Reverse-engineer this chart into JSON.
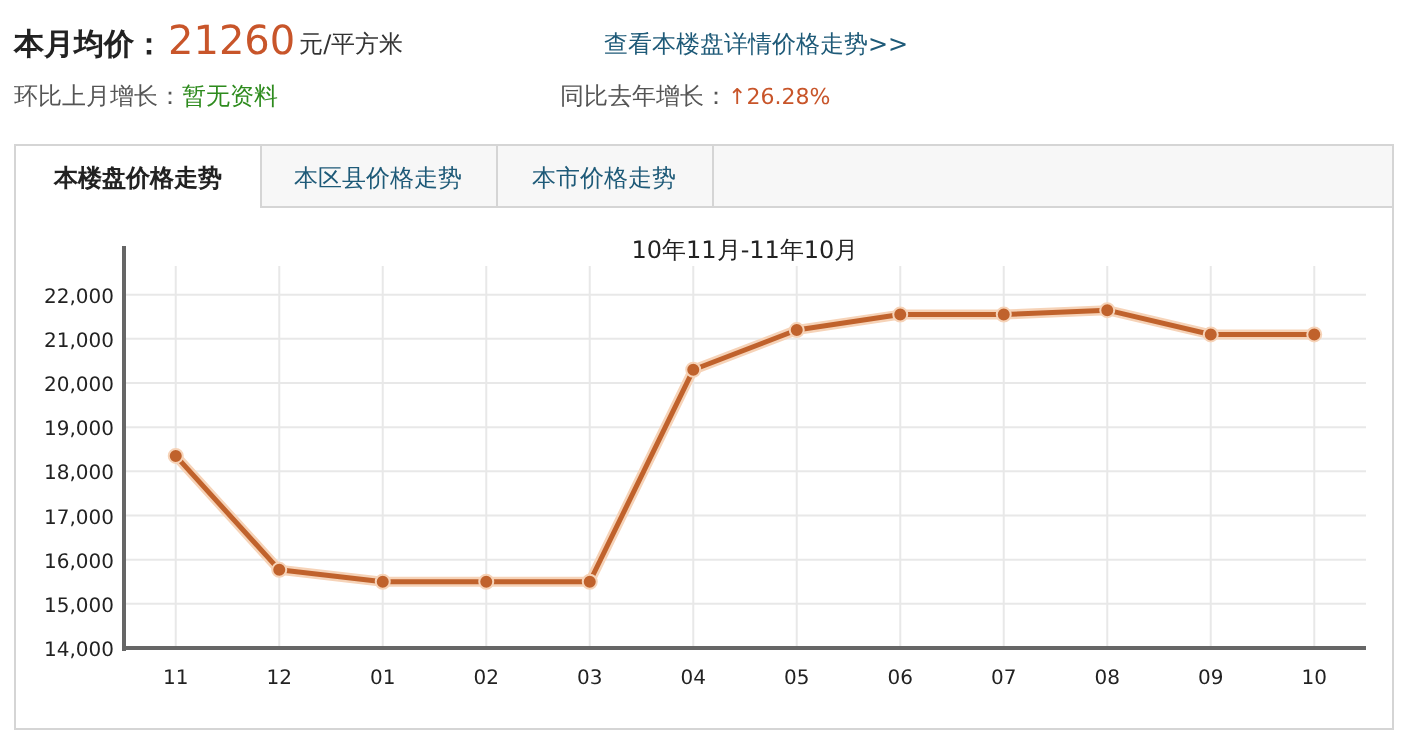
{
  "chart_data": {
    "type": "line",
    "title": "10年11月-11年10月",
    "categories": [
      "11",
      "12",
      "01",
      "02",
      "03",
      "04",
      "05",
      "06",
      "07",
      "08",
      "09",
      "10"
    ],
    "series": [
      {
        "color": "#c0622c",
        "values": [
          18350,
          15770,
          15500,
          15500,
          15500,
          20300,
          21200,
          21550,
          21550,
          21650,
          21100,
          21100
        ]
      }
    ],
    "ylim": [
      14000,
      22650
    ],
    "yticks": [
      {
        "value": 14000,
        "label": "14,000"
      },
      {
        "value": 15000,
        "label": "15,000"
      },
      {
        "value": 16000,
        "label": "16,000"
      },
      {
        "value": 17000,
        "label": "17,000"
      },
      {
        "value": 18000,
        "label": "18,000"
      },
      {
        "value": 19000,
        "label": "19,000"
      },
      {
        "value": 20000,
        "label": "20,000"
      },
      {
        "value": 21000,
        "label": "21,000"
      },
      {
        "value": 22000,
        "label": "22,000"
      }
    ],
    "grid": true,
    "marker": "circle",
    "annotations": [
      "本月均价：",
      "21260",
      "元/平方米",
      "查看本楼盘详情价格走势>>",
      "环比上月增长：",
      "暂无资料",
      "同比去年增长：",
      "↑26.28%",
      "本楼盘价格走势",
      "本区县价格走势",
      "本市价格走势"
    ]
  }
}
